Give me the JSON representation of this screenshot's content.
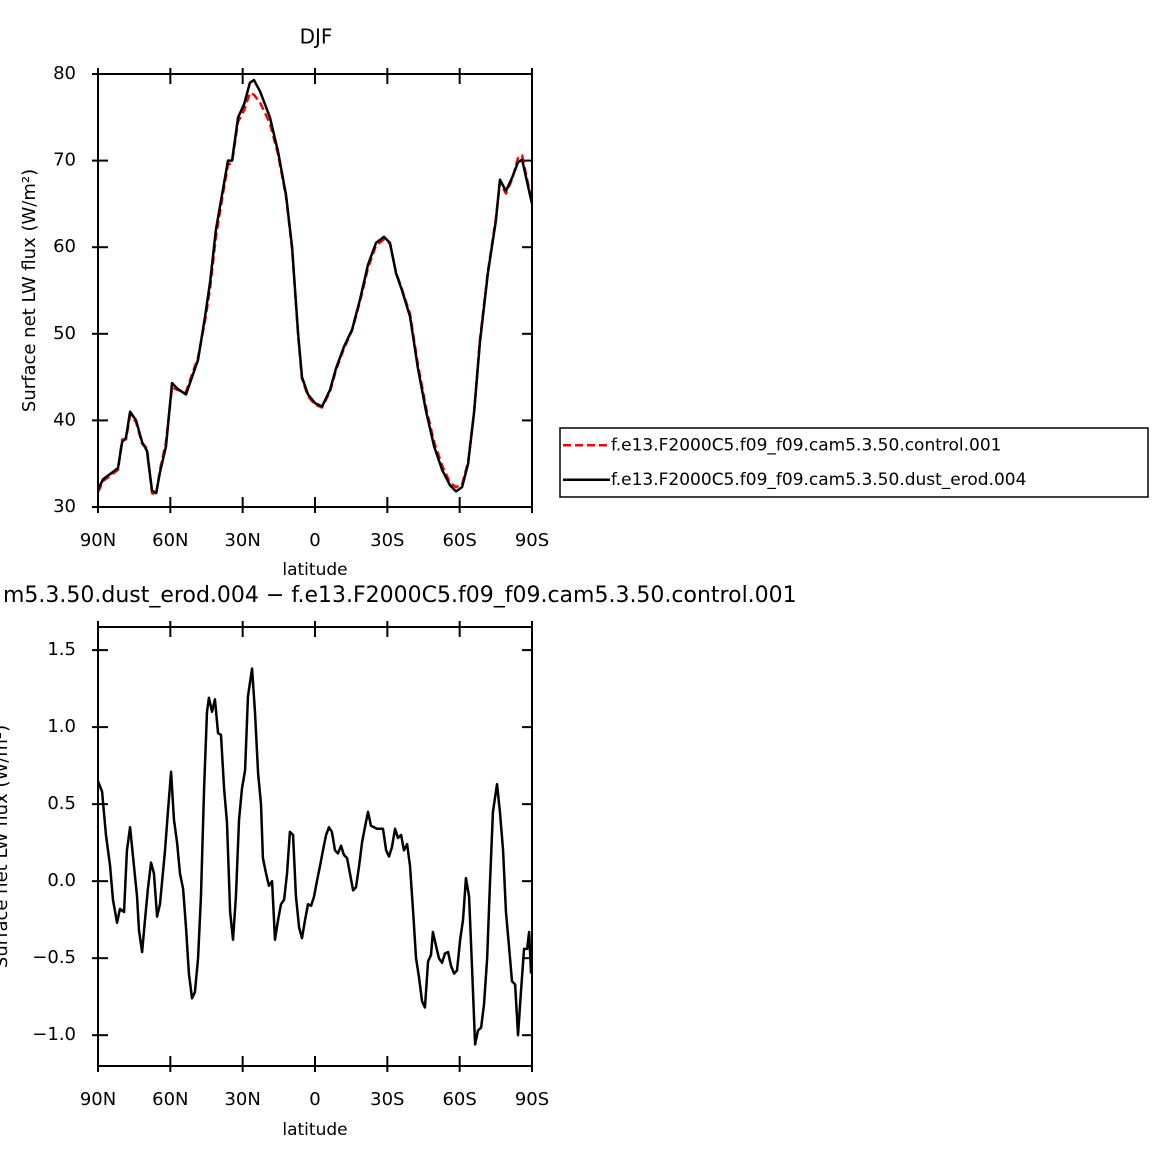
{
  "chart_data": [
    {
      "type": "line",
      "title": "DJF",
      "xlabel": "latitude",
      "ylabel": "Surface net LW flux (W/m²)",
      "xlim": [
        90,
        -90
      ],
      "ylim": [
        30,
        80
      ],
      "xticks": [
        {
          "value": 90,
          "label": "90N"
        },
        {
          "value": 60,
          "label": "60N"
        },
        {
          "value": 30,
          "label": "30N"
        },
        0,
        {
          "value": -30,
          "label": "30S"
        },
        {
          "value": -60,
          "label": "60S"
        },
        {
          "value": -90,
          "label": "90S"
        }
      ],
      "yticks": [
        30,
        40,
        50,
        60,
        70,
        80
      ],
      "x": [
        90,
        87.9,
        85,
        81.7,
        80,
        78.4,
        76.7,
        74.2,
        71.7,
        69.7,
        67.6,
        65.9,
        64.3,
        61.8,
        59.3,
        56.8,
        53.5,
        51,
        48.5,
        45.6,
        43.5,
        41.1,
        38.6,
        36.1,
        34.4,
        31.9,
        29.4,
        27,
        25.3,
        22.8,
        18.7,
        15.3,
        12,
        9.5,
        7,
        5.4,
        2.9,
        0,
        -2.9,
        -6.2,
        -8.7,
        -12,
        -15.4,
        -18.7,
        -22,
        -25.3,
        -28.6,
        -31.1,
        -33.6,
        -36.1,
        -39.4,
        -42.7,
        -46.1,
        -49.4,
        -52.7,
        -56,
        -58.5,
        -61,
        -63.5,
        -66,
        -68.4,
        -71.7,
        -75,
        -76.7,
        -79.2,
        -81.7,
        -84.2,
        -85.9,
        -87.6,
        -90
      ],
      "series": [
        {
          "name": "f.e13.F2000C5.f09_f09.cam5.3.50.control.001",
          "color": "#ff0000",
          "line_style": "dashed",
          "values": [
            31.7,
            33.0,
            33.6,
            34.3,
            37.8,
            37.8,
            40.6,
            39.8,
            37.3,
            36.8,
            31.6,
            31.4,
            34.3,
            37.5,
            43.8,
            43.5,
            43.3,
            45.3,
            47.3,
            51.5,
            55.3,
            61.2,
            65.5,
            69.5,
            69.8,
            74.5,
            75.8,
            77.8,
            77.6,
            76.7,
            74.3,
            70.7,
            65.8,
            59.8,
            49.8,
            44.8,
            42.8,
            41.8,
            41.5,
            43.3,
            45.8,
            48.3,
            50.4,
            53.8,
            57.6,
            60.2,
            60.9,
            60.4,
            57.1,
            55.1,
            52.3,
            46.4,
            41.4,
            37.5,
            34.8,
            32.8,
            32.3,
            32.6,
            35.2,
            41.0,
            49.3,
            57.2,
            63.3,
            67.5,
            66.2,
            67.8,
            70.3,
            70.6,
            68.3,
            65.2
          ]
        },
        {
          "name": "f.e13.F2000C5.f09_f09.cam5.3.50.dust_erod.004",
          "color": "#000000",
          "line_style": "solid",
          "values": [
            32.0,
            33.2,
            33.8,
            34.5,
            37.5,
            38.0,
            41.0,
            40.0,
            37.5,
            36.5,
            31.9,
            31.6,
            34.0,
            37.0,
            44.3,
            43.6,
            43.0,
            45.0,
            47.0,
            52.0,
            56.0,
            62.0,
            66.0,
            70.0,
            70.0,
            75.0,
            76.5,
            79.0,
            79.3,
            78.0,
            75.0,
            71.0,
            66.0,
            60.0,
            50.0,
            45.0,
            43.0,
            42.0,
            41.6,
            43.5,
            46.0,
            48.5,
            50.5,
            54.0,
            58.0,
            60.5,
            61.2,
            60.5,
            57.0,
            55.0,
            52.0,
            46.0,
            41.0,
            37.0,
            34.3,
            32.5,
            31.8,
            32.3,
            35.0,
            41.0,
            49.0,
            57.0,
            63.0,
            67.8,
            66.5,
            68.0,
            69.8,
            70.1,
            68.0,
            65.0
          ]
        }
      ]
    },
    {
      "type": "line",
      "title": "m5.3.50.dust_erod.004 − f.e13.F2000C5.f09_f09.cam5.3.50.control.001",
      "xlabel": "latitude",
      "ylabel": "Surface net LW flux (W/m²)",
      "xlim": [
        90,
        -90
      ],
      "ylim": [
        -1.2,
        1.65
      ],
      "xticks": [
        {
          "value": 90,
          "label": "90N"
        },
        {
          "value": 60,
          "label": "60N"
        },
        {
          "value": 30,
          "label": "30N"
        },
        0,
        {
          "value": -30,
          "label": "30S"
        },
        {
          "value": -60,
          "label": "60S"
        },
        {
          "value": -90,
          "label": "90S"
        }
      ],
      "yticks": [
        {
          "value": -1,
          "label": "−1.0"
        },
        {
          "value": -0.5,
          "label": "−0.5"
        },
        {
          "value": 0,
          "label": "0.0"
        },
        0.5,
        {
          "value": 1,
          "label": "1.0"
        },
        1.5
      ],
      "x": [
        90,
        88.3,
        86.7,
        85.0,
        83.8,
        82.1,
        80.9,
        79.2,
        78.0,
        76.7,
        75.1,
        73.8,
        73.0,
        71.7,
        70.5,
        69.3,
        68.0,
        66.8,
        65.5,
        64.3,
        62.2,
        61.0,
        59.7,
        58.5,
        57.2,
        56.0,
        54.7,
        53.5,
        52.3,
        51.0,
        49.8,
        48.5,
        47.3,
        46.0,
        44.8,
        44.0,
        42.7,
        41.5,
        40.2,
        39.0,
        37.7,
        36.5,
        35.2,
        34.0,
        32.8,
        31.5,
        30.3,
        29.0,
        27.8,
        26.1,
        24.9,
        23.6,
        22.4,
        21.6,
        20.3,
        19.1,
        17.8,
        16.6,
        15.3,
        14.1,
        12.8,
        11.6,
        10.4,
        9.1,
        7.9,
        6.6,
        5.4,
        4.1,
        2.9,
        1.6,
        0.4,
        -0.8,
        -2.1,
        -3.3,
        -4.6,
        -5.8,
        -7.0,
        -8.3,
        -9.5,
        -10.8,
        -12.0,
        -13.3,
        -14.5,
        -15.8,
        -17.0,
        -18.3,
        -19.5,
        -20.7,
        -22.0,
        -23.2,
        -24.5,
        -25.7,
        -27.0,
        -28.2,
        -29.5,
        -30.7,
        -31.9,
        -33.2,
        -34.4,
        -35.7,
        -36.9,
        -38.2,
        -39.4,
        -40.7,
        -41.9,
        -43.1,
        -44.4,
        -45.6,
        -46.9,
        -48.1,
        -48.9,
        -50.2,
        -51.4,
        -52.7,
        -53.9,
        -55.2,
        -56.4,
        -57.7,
        -58.9,
        -60.2,
        -61.4,
        -62.6,
        -63.9,
        -65.1,
        -66.4,
        -67.6,
        -68.9,
        -70.1,
        -71.4,
        -72.6,
        -73.8,
        -75.5,
        -76.7,
        -78.0,
        -79.2,
        -80.5,
        -81.7,
        -83.0,
        -84.2,
        -85.5,
        -86.7,
        -88.0,
        -88.8,
        -89.6
      ],
      "series": [
        {
          "color": "#000000",
          "line_style": "solid",
          "values": [
            0.65,
            0.58,
            0.3,
            0.1,
            -0.12,
            -0.27,
            -0.18,
            -0.2,
            0.2,
            0.35,
            0.1,
            -0.1,
            -0.32,
            -0.46,
            -0.25,
            -0.05,
            0.12,
            0.05,
            -0.23,
            -0.15,
            0.2,
            0.45,
            0.71,
            0.4,
            0.25,
            0.05,
            -0.05,
            -0.3,
            -0.6,
            -0.76,
            -0.72,
            -0.5,
            -0.1,
            0.6,
            1.1,
            1.19,
            1.1,
            1.18,
            0.96,
            0.95,
            0.6,
            0.38,
            -0.2,
            -0.38,
            -0.1,
            0.4,
            0.6,
            0.72,
            1.2,
            1.38,
            1.1,
            0.7,
            0.5,
            0.15,
            0.05,
            -0.03,
            0.0,
            -0.38,
            -0.25,
            -0.15,
            -0.12,
            0.05,
            0.32,
            0.3,
            -0.1,
            -0.3,
            -0.37,
            -0.25,
            -0.15,
            -0.16,
            -0.1,
            0.0,
            0.1,
            0.2,
            0.3,
            0.35,
            0.32,
            0.2,
            0.18,
            0.23,
            0.17,
            0.15,
            0.05,
            -0.06,
            -0.04,
            0.1,
            0.25,
            0.35,
            0.45,
            0.36,
            0.35,
            0.34,
            0.34,
            0.34,
            0.2,
            0.16,
            0.22,
            0.34,
            0.28,
            0.3,
            0.2,
            0.24,
            0.1,
            -0.2,
            -0.5,
            -0.62,
            -0.78,
            -0.82,
            -0.52,
            -0.48,
            -0.33,
            -0.42,
            -0.5,
            -0.53,
            -0.47,
            -0.46,
            -0.55,
            -0.6,
            -0.58,
            -0.38,
            -0.25,
            0.02,
            -0.1,
            -0.55,
            -1.06,
            -0.97,
            -0.95,
            -0.8,
            -0.5,
            0.0,
            0.45,
            0.63,
            0.45,
            0.2,
            -0.2,
            -0.43,
            -0.65,
            -0.67,
            -1.0,
            -0.7,
            -0.44,
            -0.44,
            -0.33,
            -0.6
          ]
        }
      ]
    }
  ]
}
